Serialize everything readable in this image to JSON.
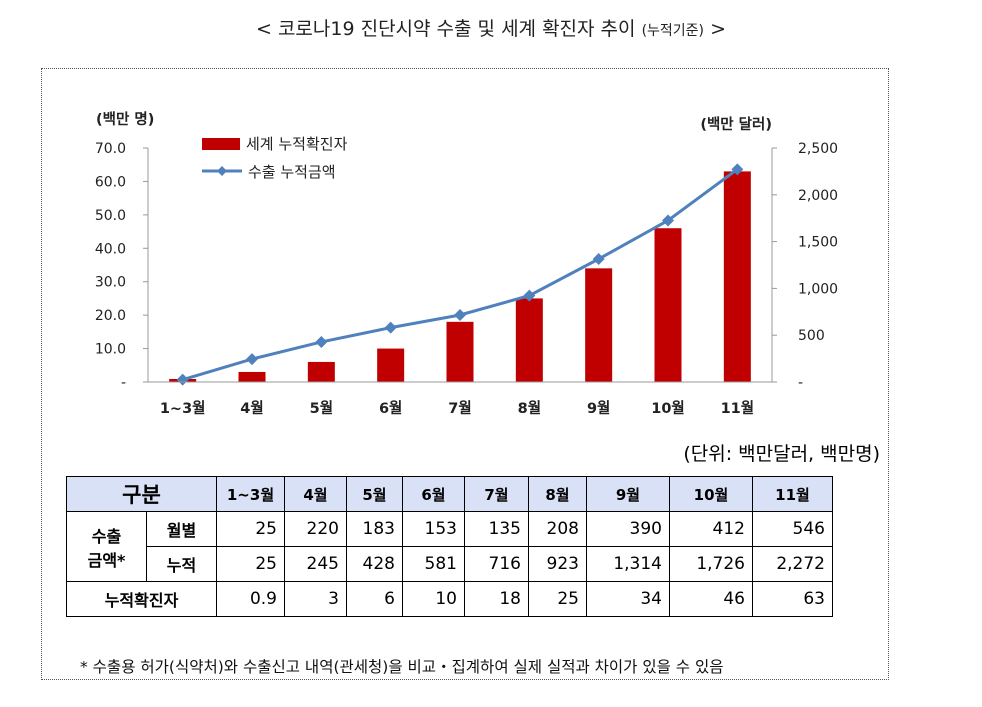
{
  "title": {
    "main": "< 코로나19 진단시약 수출 및 세계 확진자 추이",
    "small": "(누적기준)",
    "end": ">"
  },
  "chart_data": {
    "type": "bar+line",
    "categories": [
      "1~3월",
      "4월",
      "5월",
      "6월",
      "7월",
      "8월",
      "9월",
      "10월",
      "11월"
    ],
    "series": [
      {
        "name": "세계 누적확진자",
        "type": "bar",
        "axis": "left",
        "color": "#c00000",
        "values": [
          0.9,
          3,
          6,
          10,
          18,
          25,
          34,
          46,
          63
        ]
      },
      {
        "name": "수출 누적금액",
        "type": "line",
        "axis": "right",
        "color": "#4f81bd",
        "values": [
          25,
          245,
          428,
          581,
          716,
          923,
          1314,
          1726,
          2272
        ]
      }
    ],
    "left_axis": {
      "unit": "(백만 명)",
      "min": 0,
      "max": 70,
      "ticks": [
        0,
        10,
        20,
        30,
        40,
        50,
        60,
        70
      ],
      "tick_labels": [
        "-",
        "10.0",
        "20.0",
        "30.0",
        "40.0",
        "50.0",
        "60.0",
        "70.0"
      ]
    },
    "right_axis": {
      "unit": "(백만 달러)",
      "min": 0,
      "max": 2500,
      "ticks": [
        0,
        500,
        1000,
        1500,
        2000,
        2500
      ],
      "tick_labels": [
        "-",
        "500",
        "1,000",
        "1,500",
        "2,000",
        "2,500"
      ]
    },
    "legend_position": "top-left",
    "grid": false
  },
  "unit_note": "(단위: 백만달러, 백만명)",
  "table": {
    "header_label": "구분",
    "months": [
      "1~3월",
      "4월",
      "5월",
      "6월",
      "7월",
      "8월",
      "9월",
      "10월",
      "11월"
    ],
    "group_label_line1": "수출",
    "group_label_line2": "금액*",
    "rows": [
      {
        "label": "월별",
        "values": [
          "25",
          "220",
          "183",
          "153",
          "135",
          "208",
          "390",
          "412",
          "546"
        ]
      },
      {
        "label": "누적",
        "values": [
          "25",
          "245",
          "428",
          "581",
          "716",
          "923",
          "1,314",
          "1,726",
          "2,272"
        ]
      },
      {
        "label": "누적확진자",
        "values": [
          "0.9",
          "3",
          "6",
          "10",
          "18",
          "25",
          "34",
          "46",
          "63"
        ]
      }
    ]
  },
  "footnote": "* 수출용 허가(식약처)와 수출신고 내역(관세청)을 비교・집계하여 실제 실적과 차이가 있을 수 있음"
}
